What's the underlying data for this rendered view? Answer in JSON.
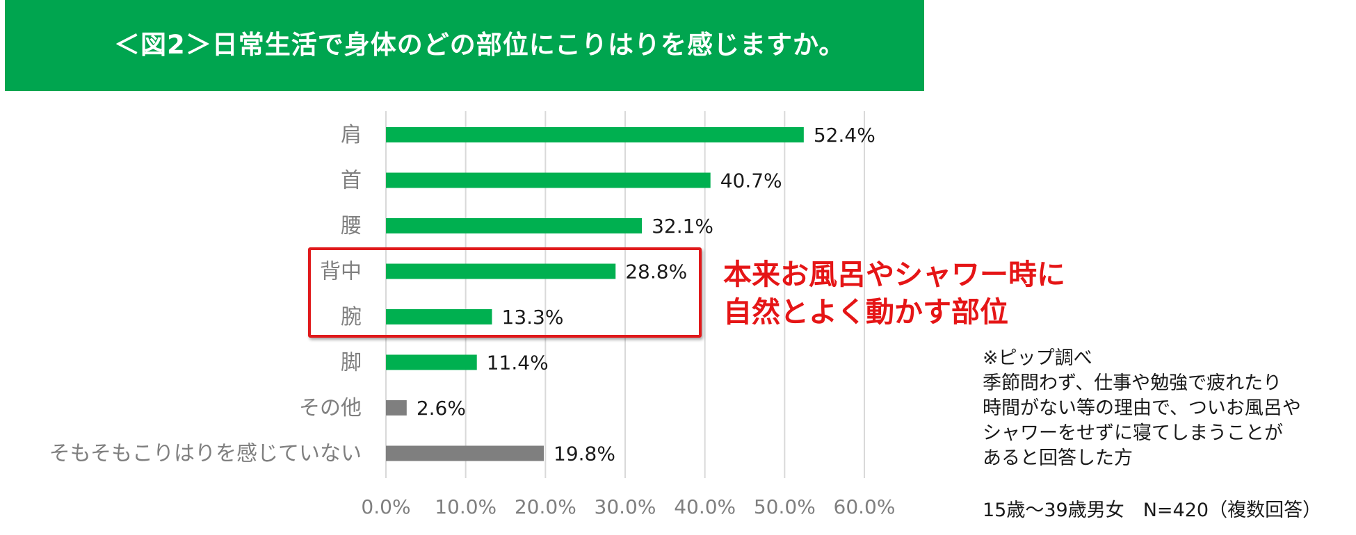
{
  "title": "＜図2＞日常生活で身体のどの部位にこりはりを感じますか。",
  "callout": {
    "line1": "本来お風呂やシャワー時に",
    "line2": "自然とよく動かす部位"
  },
  "note": {
    "line1": "※ピップ調べ",
    "line2": "季節問わず、仕事や勉強で疲れたり",
    "line3": "時間がない等の理由で、ついお風呂や",
    "line4": "シャワーをせずに寝てしまうことが",
    "line5": "あると回答した方"
  },
  "sample": "15歳～39歳男女　N=420（複数回答）",
  "colors": {
    "banner": "#00a54f",
    "bar_green": "#00b050",
    "bar_gray": "#7f7f7f",
    "highlight": "#e0191b",
    "callout": "#e51516"
  },
  "chart_data": {
    "type": "bar",
    "orientation": "horizontal",
    "categories": [
      "肩",
      "首",
      "腰",
      "背中",
      "腕",
      "脚",
      "その他",
      "そもそもこりはりを感じていない"
    ],
    "values": [
      52.4,
      40.7,
      32.1,
      28.8,
      13.3,
      11.4,
      2.6,
      19.8
    ],
    "value_labels": [
      "52.4%",
      "40.7%",
      "32.1%",
      "28.8%",
      "13.3%",
      "11.4%",
      "2.6%",
      "19.8%"
    ],
    "bar_colors": [
      "#00b050",
      "#00b050",
      "#00b050",
      "#00b050",
      "#00b050",
      "#00b050",
      "#7f7f7f",
      "#7f7f7f"
    ],
    "xlim": [
      0,
      60
    ],
    "xticks": [
      0,
      10,
      20,
      30,
      40,
      50,
      60
    ],
    "xtick_labels": [
      "0.0%",
      "10.0%",
      "20.0%",
      "30.0%",
      "40.0%",
      "50.0%",
      "60.0%"
    ],
    "grid": true,
    "highlighted_categories": [
      "背中",
      "腕"
    ]
  }
}
